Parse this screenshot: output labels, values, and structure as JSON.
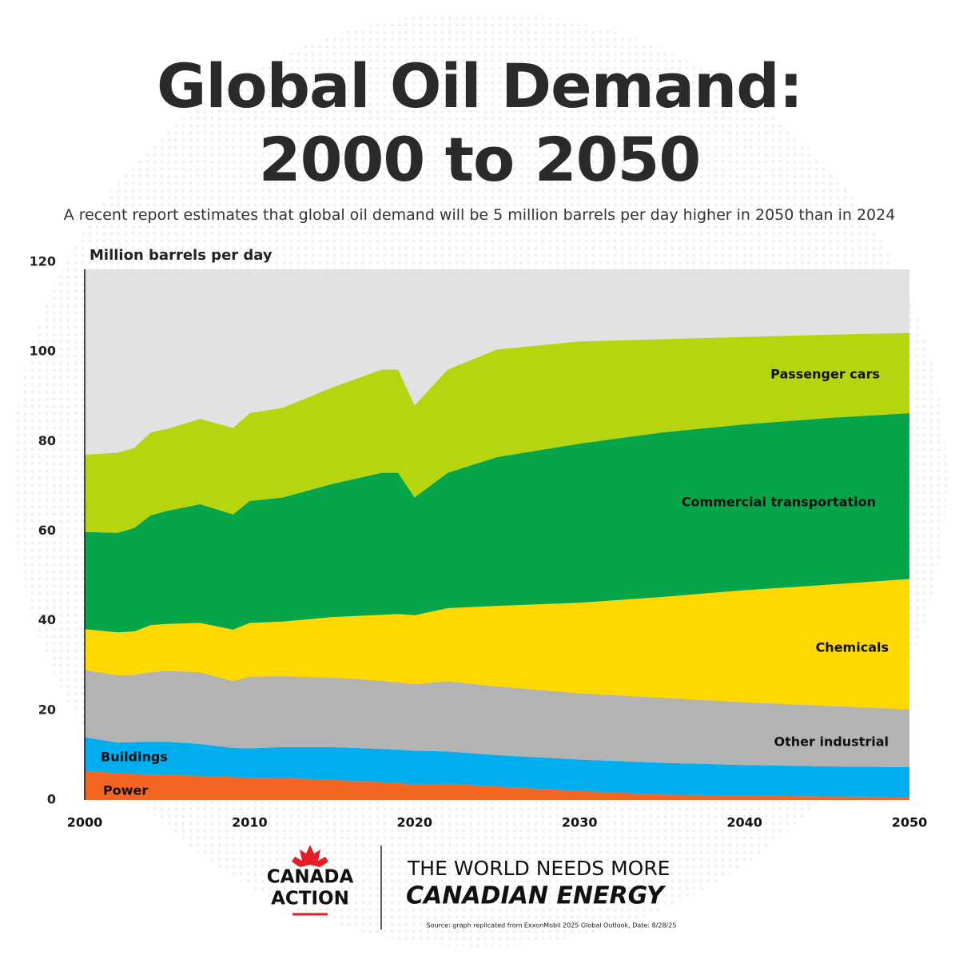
{
  "chart_data": {
    "type": "stacked-area",
    "title": "Global Oil Demand: 2000 to 2050",
    "subtitle": "A recent report estimates that global oil demand will be 5 million barrels per day higher in 2050 than in 2024",
    "y_label": "Million barrels per day",
    "x": [
      2000,
      2002,
      2003,
      2004,
      2005,
      2007,
      2009,
      2010,
      2012,
      2015,
      2018,
      2019,
      2020,
      2022,
      2025,
      2030,
      2035,
      2040,
      2045,
      2050
    ],
    "xlim": [
      2000,
      2050
    ],
    "xticks": [
      2000,
      2010,
      2020,
      2030,
      2040,
      2050
    ],
    "ylim": [
      0,
      120
    ],
    "yticks": [
      0,
      20,
      40,
      60,
      80,
      100,
      120
    ],
    "series": [
      {
        "name": "Power",
        "color": "#f26522",
        "values": [
          6.5,
          6,
          5.8,
          5.7,
          5.6,
          5.4,
          5.1,
          5,
          4.9,
          4.5,
          4,
          3.8,
          3.5,
          3.6,
          3,
          2,
          1.2,
          1,
          0.8,
          0.7
        ]
      },
      {
        "name": "Buildings",
        "color": "#00aeef",
        "values": [
          7.5,
          6.8,
          7.1,
          7.3,
          7.4,
          7.1,
          6.5,
          6.5,
          6.9,
          7.3,
          7.4,
          7.4,
          7.5,
          7.2,
          7,
          7,
          7.1,
          6.8,
          6.7,
          6.6
        ]
      },
      {
        "name": "Other industrial",
        "color": "#b3b3b3",
        "values": [
          15,
          15,
          15,
          15.5,
          15.8,
          16,
          14.9,
          16,
          15.8,
          15.5,
          15.2,
          15,
          14.8,
          15.7,
          15.3,
          14.8,
          14.5,
          14,
          13.5,
          12.9
        ]
      },
      {
        "name": "Chemicals",
        "color": "#ffd800",
        "values": [
          9.1,
          9.6,
          9.7,
          10.5,
          10.5,
          11,
          11.5,
          12,
          12.2,
          13.5,
          14.7,
          15.3,
          15.4,
          16.3,
          18,
          20.2,
          22.5,
          25,
          27,
          29.1
        ]
      },
      {
        "name": "Commercial transportation",
        "color": "#07a54a",
        "values": [
          21.7,
          22.2,
          23.1,
          24.5,
          25.2,
          26.5,
          25.7,
          27.2,
          27.7,
          29.7,
          31.7,
          31.5,
          26.3,
          30.2,
          33.2,
          35.5,
          36.7,
          37,
          37.2,
          37
        ]
      },
      {
        "name": "Passenger cars",
        "color": "#b5d60f",
        "values": [
          17.2,
          17.9,
          17.8,
          18.5,
          18.3,
          19,
          19.3,
          19.6,
          20,
          21.5,
          23,
          23,
          20.5,
          23,
          24,
          22.8,
          20.8,
          19.5,
          18.6,
          17.9
        ]
      }
    ]
  },
  "footer": {
    "brand_line1": "CANADA",
    "brand_line2": "ACTION",
    "slogan_line1": "THE WORLD NEEDS MORE",
    "slogan_line2": "CANADIAN ENERGY",
    "source": "Source: graph replicated from ExxonMobil 2025 Global Outlook, Date: 8/28/25"
  }
}
